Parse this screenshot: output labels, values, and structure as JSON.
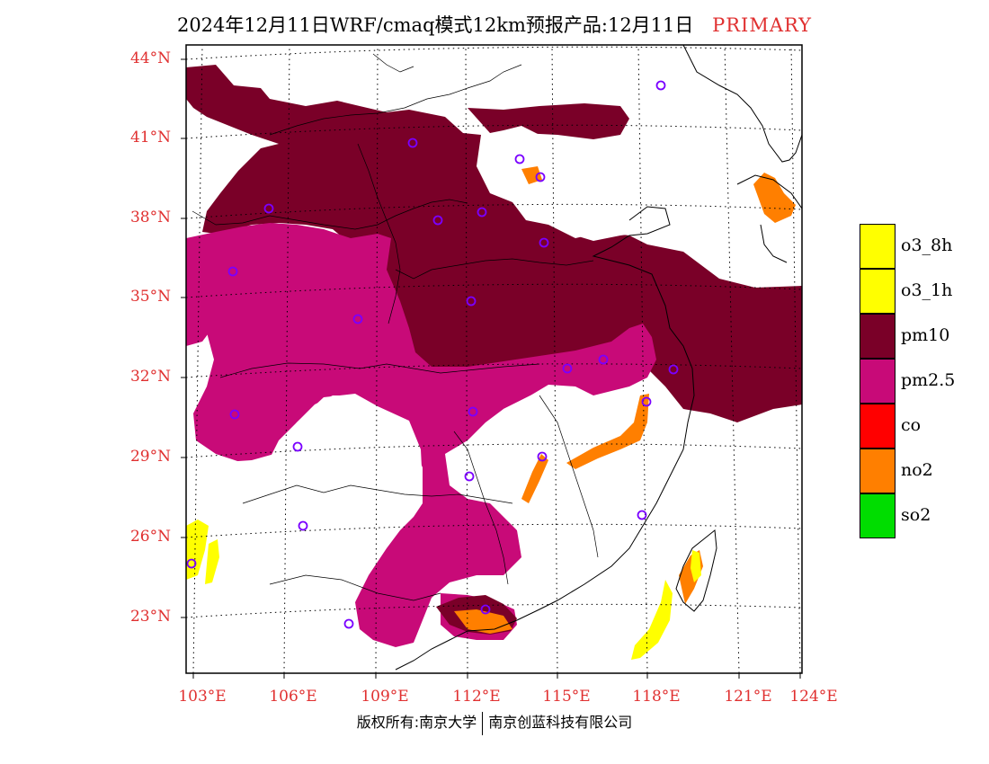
{
  "title": {
    "main": "2024年12月11日WRF/cmaq模式12km预报产品:12月11日",
    "tag": "PRIMARY"
  },
  "lat_labels": [
    "44°N",
    "41°N",
    "38°N",
    "35°N",
    "32°N",
    "29°N",
    "26°N",
    "23°N"
  ],
  "lon_labels": [
    "103°E",
    "106°E",
    "109°E",
    "112°E",
    "115°E",
    "118°E",
    "121°E",
    "124°E"
  ],
  "legend": [
    {
      "label": "o3_8h",
      "color": "#ffff00"
    },
    {
      "label": "o3_1h",
      "color": "#ffff00"
    },
    {
      "label": "pm10",
      "color": "#7a0028"
    },
    {
      "label": "pm2.5",
      "color": "#c80a78"
    },
    {
      "label": "co",
      "color": "#ff0000"
    },
    {
      "label": "no2",
      "color": "#ff7f00"
    },
    {
      "label": "so2",
      "color": "#00dd00"
    }
  ],
  "footer": {
    "left": "版权所有:南京大学",
    "right": "南京创蓝科技有限公司"
  }
}
